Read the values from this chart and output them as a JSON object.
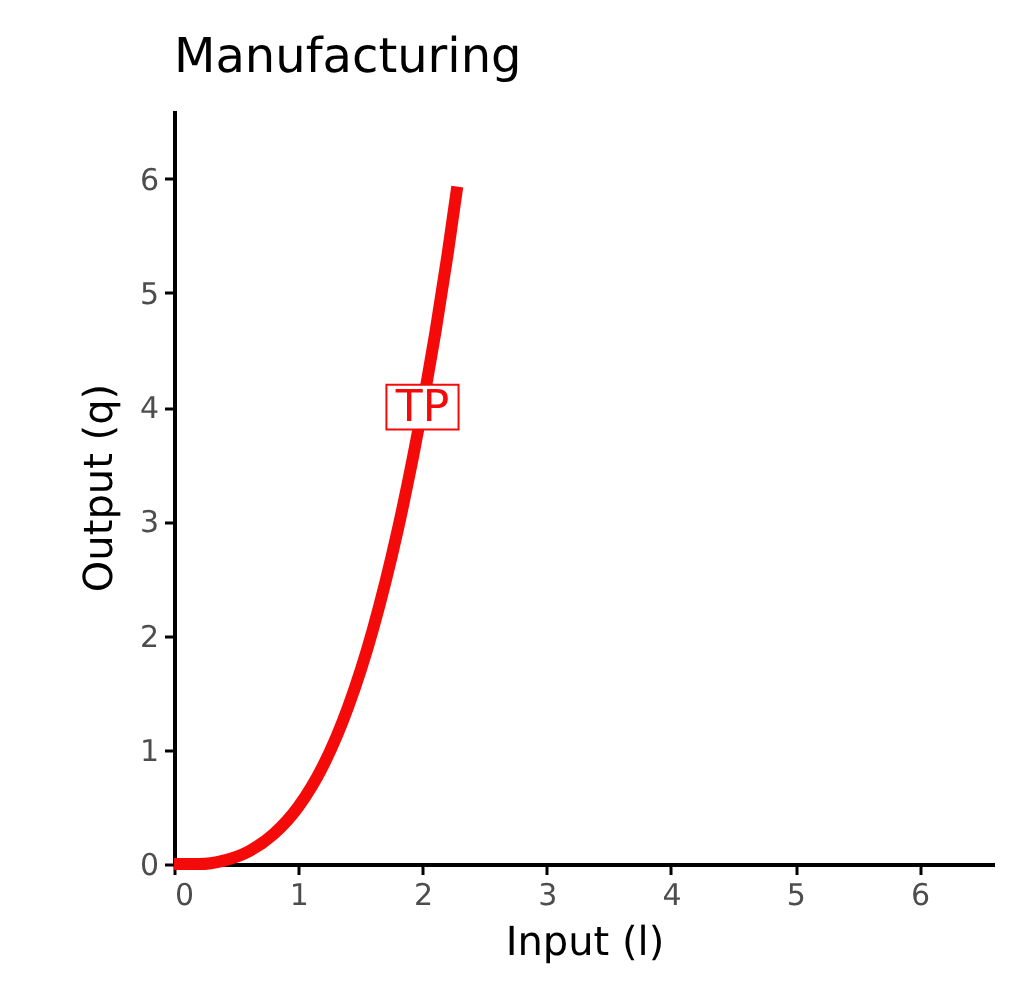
{
  "chart_data": {
    "type": "line",
    "title": "Manufacturing",
    "xlabel": "Input (l)",
    "ylabel": "Output (q)",
    "x": [
      0,
      0.2,
      0.4,
      0.6,
      0.8,
      1.0,
      1.2,
      1.4,
      1.6,
      1.8,
      2.0,
      2.2,
      2.28
    ],
    "series": [
      {
        "color": "#f50a0a",
        "values": [
          0,
          0,
          0.03,
          0.11,
          0.26,
          0.5,
          0.86,
          1.37,
          2.05,
          2.92,
          4.0,
          5.32,
          5.93
        ]
      }
    ],
    "annotations": [
      {
        "text": "TP",
        "x": 2,
        "y": 4
      }
    ],
    "xlim": [
      0,
      6.6
    ],
    "ylim": [
      0,
      6.6
    ],
    "xticks": [
      0,
      1,
      2,
      3,
      4,
      5,
      6
    ],
    "yticks": [
      0,
      1,
      2,
      3,
      4,
      5,
      6
    ],
    "grid": false,
    "legend": false,
    "marker": "none",
    "line_style": "solid"
  }
}
